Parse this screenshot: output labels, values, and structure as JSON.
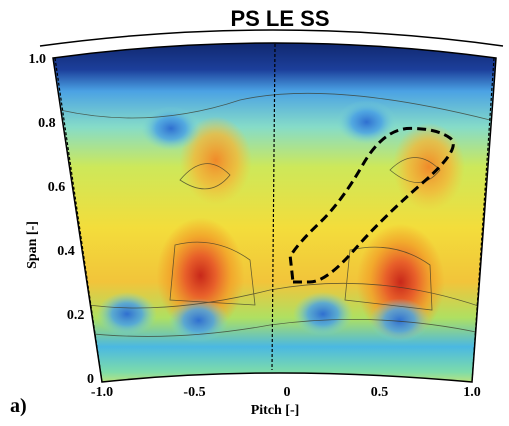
{
  "chart_data": {
    "type": "heatmap",
    "title": "PS LE SS",
    "xlabel": "Pitch [-]",
    "ylabel": "Span [-]",
    "xlim": [
      -1.0,
      1.0
    ],
    "ylim": [
      0,
      1.0
    ],
    "x_ticks": [
      "-1.0",
      "-0.5",
      "0",
      "0.5",
      "1.0"
    ],
    "y_ticks": [
      "0",
      "0.2",
      "0.4",
      "0.6",
      "0.8",
      "1.0"
    ],
    "x_tick_values": [
      -1.0,
      -0.5,
      0,
      0.5,
      1.0
    ],
    "y_tick_values": [
      0,
      0.2,
      0.4,
      0.6,
      0.8,
      1.0
    ],
    "panel_label": "a)",
    "hotspots": [
      {
        "x": -0.42,
        "y": 0.32,
        "level": "max"
      },
      {
        "x": 0.6,
        "y": 0.3,
        "level": "max"
      },
      {
        "x": -0.3,
        "y": 0.68,
        "level": "high"
      },
      {
        "x": 0.72,
        "y": 0.66,
        "level": "high"
      },
      {
        "x": -0.5,
        "y": 0.78,
        "level": "low"
      },
      {
        "x": 0.42,
        "y": 0.8,
        "level": "low"
      },
      {
        "x": -0.82,
        "y": 0.2,
        "level": "low"
      },
      {
        "x": -0.45,
        "y": 0.18,
        "level": "low"
      },
      {
        "x": 0.2,
        "y": 0.2,
        "level": "low"
      },
      {
        "x": 0.6,
        "y": 0.18,
        "level": "low"
      }
    ],
    "dashed_region": [
      [
        0.05,
        0.3
      ],
      [
        0.22,
        0.3
      ],
      [
        0.5,
        0.5
      ],
      [
        0.88,
        0.72
      ],
      [
        0.75,
        0.78
      ],
      [
        0.5,
        0.78
      ],
      [
        0.3,
        0.55
      ],
      [
        0.08,
        0.42
      ],
      [
        0.0,
        0.34
      ]
    ],
    "colors": {
      "endwall": "#0b1d5a",
      "max": "#c8281a",
      "high": "#f2a32a",
      "mid": "#f7e23a",
      "low_mid": "#7dd8a0",
      "low": "#3f8fdc"
    }
  }
}
